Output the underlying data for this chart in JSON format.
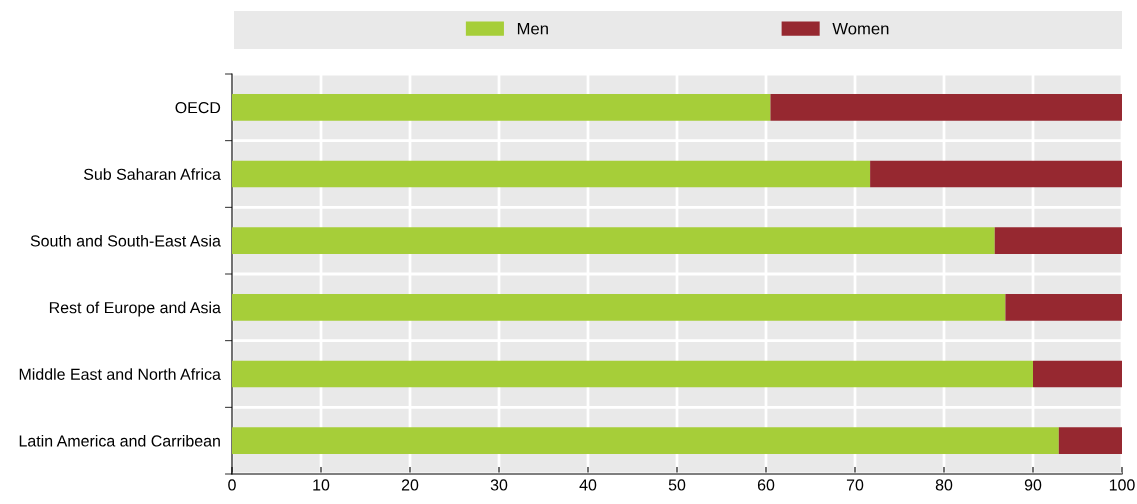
{
  "chart_data": {
    "type": "bar",
    "orientation": "horizontal",
    "stacked": true,
    "categories": [
      "OECD",
      "Sub Saharan Africa",
      "South and South-East Asia",
      "Rest of Europe and Asia",
      "Middle East and North Africa",
      "Latin America and Carribean"
    ],
    "series": [
      {
        "name": "Men",
        "color": "#a6ce39",
        "values": [
          60.5,
          71.7,
          85.7,
          86.9,
          90.0,
          92.9
        ]
      },
      {
        "name": "Women",
        "color": "#962830",
        "values": [
          39.5,
          28.3,
          14.3,
          13.1,
          10.0,
          7.1
        ]
      }
    ],
    "xlim": [
      0,
      100
    ],
    "xticks": [
      0,
      10,
      20,
      30,
      40,
      50,
      60,
      70,
      80,
      90,
      100
    ],
    "grid": true,
    "legend": "top"
  }
}
